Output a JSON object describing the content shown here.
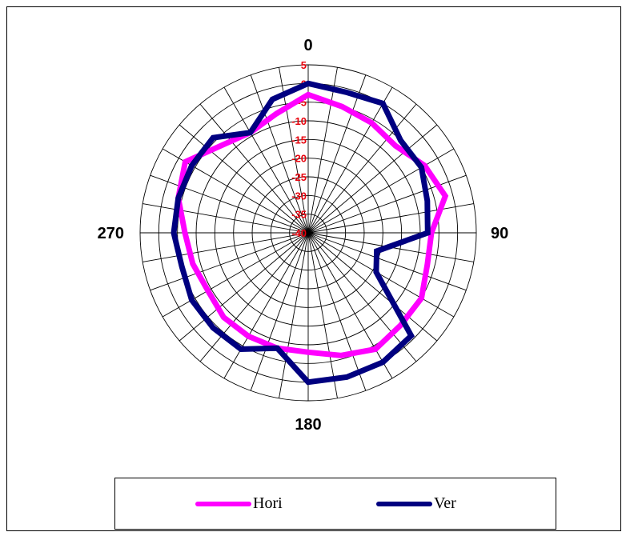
{
  "chart_data": {
    "type": "polar-line",
    "angle_unit": "degrees",
    "angle_labels": [
      {
        "angle": 0,
        "text": "0"
      },
      {
        "angle": 90,
        "text": "90"
      },
      {
        "angle": 180,
        "text": "180"
      },
      {
        "angle": 270,
        "text": "270"
      }
    ],
    "r_ticks": [
      "5",
      "0",
      "-5",
      "-10",
      "-15",
      "-20",
      "-25",
      "-30",
      "-35",
      "-40"
    ],
    "r_range": [
      -40,
      5
    ],
    "grid": true,
    "legend_position": "bottom",
    "colors": {
      "Hori": "#ff00ff",
      "Ver": "#000080"
    },
    "series": [
      {
        "name": "Hori",
        "angles": [
          0,
          15,
          30,
          45,
          60,
          75,
          90,
          105,
          120,
          135,
          150,
          165,
          180,
          195,
          210,
          225,
          240,
          255,
          270,
          285,
          300,
          315,
          330,
          345
        ],
        "values": [
          -3,
          -5,
          -6,
          -7,
          -4,
          -2,
          -7,
          -7,
          -5,
          -5,
          -4,
          -6,
          -8,
          -8,
          -8,
          -8,
          -9,
          -8,
          -7,
          -4,
          -2,
          -7,
          -9,
          -7
        ]
      },
      {
        "name": "Ver",
        "angles": [
          0,
          15,
          30,
          45,
          60,
          75,
          90,
          105,
          120,
          135,
          150,
          165,
          180,
          195,
          210,
          225,
          240,
          255,
          270,
          285,
          300,
          315,
          330,
          345
        ],
        "values": [
          0,
          -1,
          0,
          -5,
          -5,
          -7,
          -8,
          -21,
          -19,
          -1,
          0,
          0,
          0,
          -8,
          -4,
          -4,
          -4,
          -5,
          -4,
          -4,
          -4,
          -4,
          -9,
          -3
        ]
      }
    ]
  }
}
